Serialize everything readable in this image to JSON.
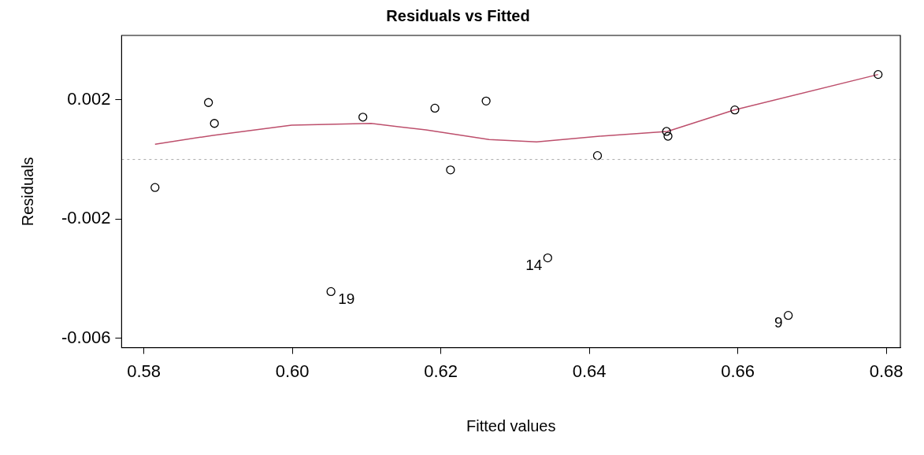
{
  "chart_data": {
    "type": "scatter",
    "title": "Residuals vs Fitted",
    "xlabel": "Fitted values",
    "ylabel": "Residuals",
    "xlim": [
      0.577,
      0.6819
    ],
    "ylim": [
      -0.00631,
      0.00416
    ],
    "xticks": [
      0.58,
      {
        "value": 0.6,
        "label": "0.60"
      },
      0.62,
      0.64,
      0.66,
      0.68
    ],
    "yticks": [
      -0.006,
      -0.002,
      0.002
    ],
    "grid": false,
    "legend": false,
    "marker": "circle",
    "series": [
      {
        "type": "scatter",
        "color": "#000000",
        "x": [
          0.5815,
          0.5887,
          0.5895,
          0.6052,
          0.6095,
          0.6192,
          0.6213,
          0.6261,
          0.6344,
          0.6411,
          0.6504,
          0.6506,
          0.6596,
          0.6668,
          0.6789
        ],
        "values": [
          -0.00094,
          0.00191,
          0.00121,
          -0.00443,
          0.00142,
          0.00172,
          -0.00035,
          0.00196,
          -0.0033,
          0.00013,
          0.00094,
          0.00078,
          0.00166,
          -0.00523,
          0.00285
        ]
      },
      {
        "type": "line",
        "color": "#bd4f6c",
        "marker": "none",
        "x": [
          0.5815,
          0.5893,
          0.5999,
          0.6106,
          0.618,
          0.6265,
          0.6329,
          0.6414,
          0.6505,
          0.6595,
          0.6789
        ],
        "values": [
          0.00051,
          0.00081,
          0.00115,
          0.00121,
          0.00099,
          0.00067,
          0.00059,
          0.00078,
          0.00094,
          0.00166,
          0.00285
        ]
      }
    ],
    "ref_lines": [
      {
        "axis": "y",
        "value": 0,
        "color": "#aaaaaa",
        "line_style": "dotted"
      }
    ],
    "annotations": [
      {
        "text": "19",
        "x": 0.6052,
        "y": -0.00443
      },
      {
        "text": "14",
        "x": 0.6344,
        "y": -0.0033
      },
      {
        "text": "9",
        "x": 0.6668,
        "y": -0.00523
      }
    ]
  }
}
